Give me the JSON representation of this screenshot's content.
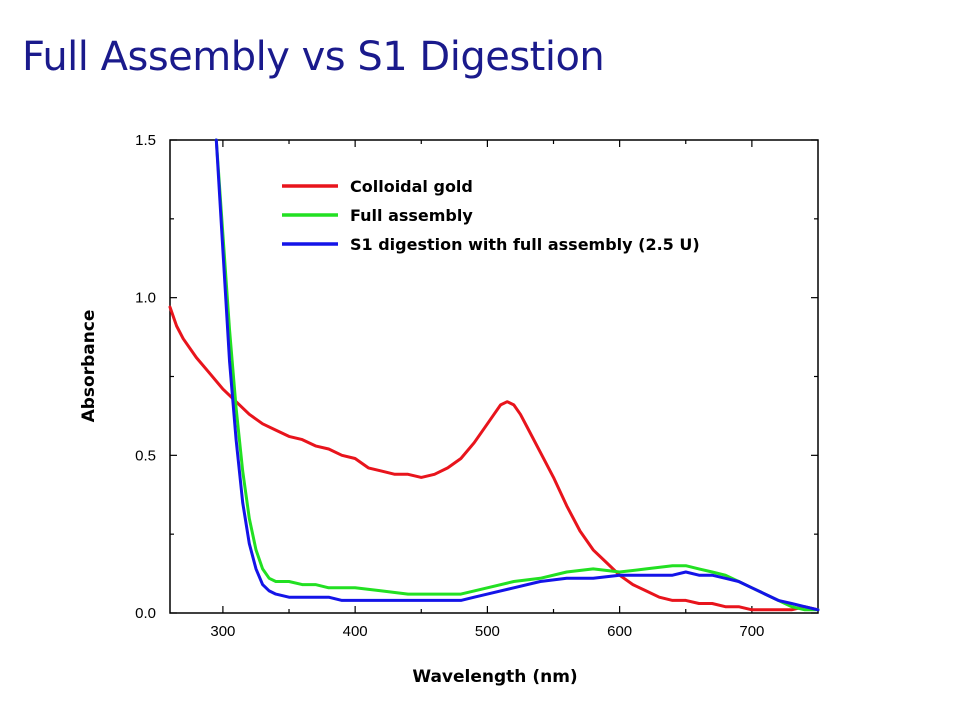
{
  "slide": {
    "title": "Full Assembly vs S1 Digestion"
  },
  "chart_data": {
    "type": "line",
    "title": "",
    "xlabel": "Wavelength (nm)",
    "ylabel": "Absorbance",
    "xlim": [
      260,
      750
    ],
    "ylim": [
      0,
      1.5
    ],
    "xticks": [
      300,
      400,
      500,
      600,
      700
    ],
    "xtick_labels": [
      "300",
      "400",
      "500",
      "600",
      "700"
    ],
    "yticks": [
      0,
      0.5,
      1.0,
      1.5
    ],
    "ytick_labels": [
      "0.0",
      "0.5",
      "1.0",
      "1.5"
    ],
    "grid": false,
    "legend_position": "top-right",
    "series": [
      {
        "name": "Colloidal gold",
        "color": "#e8141c",
        "x": [
          260,
          265,
          270,
          280,
          290,
          300,
          310,
          320,
          330,
          340,
          350,
          360,
          370,
          380,
          390,
          400,
          410,
          420,
          430,
          440,
          450,
          460,
          470,
          480,
          490,
          500,
          505,
          510,
          515,
          520,
          525,
          530,
          540,
          550,
          560,
          570,
          580,
          590,
          600,
          610,
          620,
          630,
          640,
          650,
          660,
          670,
          680,
          690,
          700,
          710,
          720,
          730,
          740,
          750
        ],
        "y": [
          0.97,
          0.91,
          0.87,
          0.81,
          0.76,
          0.71,
          0.67,
          0.63,
          0.6,
          0.58,
          0.56,
          0.55,
          0.53,
          0.52,
          0.5,
          0.49,
          0.46,
          0.45,
          0.44,
          0.44,
          0.43,
          0.44,
          0.46,
          0.49,
          0.54,
          0.6,
          0.63,
          0.66,
          0.67,
          0.66,
          0.63,
          0.59,
          0.51,
          0.43,
          0.34,
          0.26,
          0.2,
          0.16,
          0.12,
          0.09,
          0.07,
          0.05,
          0.04,
          0.04,
          0.03,
          0.03,
          0.02,
          0.02,
          0.01,
          0.01,
          0.01,
          0.01,
          0.02,
          0.01
        ]
      },
      {
        "name": "Full assembly",
        "color": "#22e022",
        "x": [
          295,
          300,
          305,
          310,
          315,
          320,
          325,
          330,
          335,
          340,
          350,
          360,
          370,
          380,
          390,
          400,
          420,
          440,
          460,
          480,
          490,
          500,
          520,
          540,
          560,
          580,
          600,
          620,
          640,
          650,
          660,
          670,
          680,
          690,
          700,
          710,
          720,
          730,
          740,
          750
        ],
        "y": [
          1.5,
          1.2,
          0.9,
          0.65,
          0.45,
          0.3,
          0.2,
          0.14,
          0.11,
          0.1,
          0.1,
          0.09,
          0.09,
          0.08,
          0.08,
          0.08,
          0.07,
          0.06,
          0.06,
          0.06,
          0.07,
          0.08,
          0.1,
          0.11,
          0.13,
          0.14,
          0.13,
          0.14,
          0.15,
          0.15,
          0.14,
          0.13,
          0.12,
          0.1,
          0.08,
          0.06,
          0.04,
          0.02,
          0.01,
          0.01
        ]
      },
      {
        "name": "S1 digestion with full assembly (2.5 U)",
        "color": "#1414e8",
        "x": [
          295,
          300,
          305,
          310,
          315,
          320,
          325,
          330,
          335,
          340,
          350,
          360,
          370,
          380,
          390,
          400,
          420,
          440,
          460,
          480,
          490,
          500,
          520,
          540,
          560,
          580,
          600,
          620,
          640,
          650,
          660,
          670,
          680,
          690,
          700,
          710,
          720,
          730,
          740,
          750
        ],
        "y": [
          1.5,
          1.15,
          0.8,
          0.55,
          0.35,
          0.22,
          0.14,
          0.09,
          0.07,
          0.06,
          0.05,
          0.05,
          0.05,
          0.05,
          0.04,
          0.04,
          0.04,
          0.04,
          0.04,
          0.04,
          0.05,
          0.06,
          0.08,
          0.1,
          0.11,
          0.11,
          0.12,
          0.12,
          0.12,
          0.13,
          0.12,
          0.12,
          0.11,
          0.1,
          0.08,
          0.06,
          0.04,
          0.03,
          0.02,
          0.01
        ]
      }
    ]
  }
}
